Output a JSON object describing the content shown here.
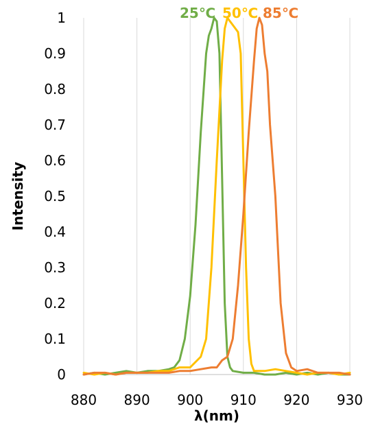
{
  "chart_data": {
    "type": "line",
    "title": "",
    "xlabel": "λ(nm)",
    "ylabel": "Intensity",
    "xlim": [
      880,
      930
    ],
    "ylim": [
      0,
      1
    ],
    "x_ticks": [
      880,
      890,
      900,
      910,
      920,
      930
    ],
    "y_ticks": [
      0,
      0.1,
      0.2,
      0.3,
      0.4,
      0.5,
      0.6,
      0.7,
      0.8,
      0.9,
      1
    ],
    "x_tick_labels": [
      "880",
      "890",
      "900",
      "910",
      "920",
      "930"
    ],
    "y_tick_labels": [
      "0",
      "0.1",
      "0.2",
      "0.3",
      "0.4",
      "0.5",
      "0.6",
      "0.7",
      "0.8",
      "0.9",
      "1"
    ],
    "grid": "vertical",
    "legend_position": "top-center",
    "series": [
      {
        "name": "25℃",
        "color": "#70AD47",
        "points": [
          [
            880,
            0.0
          ],
          [
            882,
            0.005
          ],
          [
            884,
            0.0
          ],
          [
            886,
            0.005
          ],
          [
            888,
            0.01
          ],
          [
            890,
            0.005
          ],
          [
            892,
            0.01
          ],
          [
            894,
            0.01
          ],
          [
            896,
            0.015
          ],
          [
            897,
            0.02
          ],
          [
            898,
            0.04
          ],
          [
            899,
            0.1
          ],
          [
            900,
            0.22
          ],
          [
            901,
            0.42
          ],
          [
            902,
            0.68
          ],
          [
            903,
            0.9
          ],
          [
            903.5,
            0.95
          ],
          [
            904,
            0.97
          ],
          [
            904.5,
            1.0
          ],
          [
            905,
            0.99
          ],
          [
            905.5,
            0.9
          ],
          [
            906,
            0.55
          ],
          [
            906.5,
            0.2
          ],
          [
            907,
            0.05
          ],
          [
            907.5,
            0.02
          ],
          [
            908,
            0.01
          ],
          [
            910,
            0.005
          ],
          [
            912,
            0.005
          ],
          [
            914,
            0.0
          ],
          [
            916,
            0.0
          ],
          [
            918,
            0.005
          ],
          [
            920,
            0.0
          ],
          [
            922,
            0.005
          ],
          [
            924,
            0.0
          ],
          [
            926,
            0.005
          ],
          [
            928,
            0.0
          ],
          [
            930,
            0.0
          ]
        ]
      },
      {
        "name": "50℃",
        "color": "#FFC000",
        "points": [
          [
            880,
            0.005
          ],
          [
            882,
            0.0
          ],
          [
            884,
            0.005
          ],
          [
            886,
            0.0
          ],
          [
            888,
            0.005
          ],
          [
            890,
            0.005
          ],
          [
            892,
            0.005
          ],
          [
            894,
            0.01
          ],
          [
            896,
            0.01
          ],
          [
            898,
            0.02
          ],
          [
            900,
            0.02
          ],
          [
            902,
            0.05
          ],
          [
            903,
            0.1
          ],
          [
            904,
            0.3
          ],
          [
            905,
            0.6
          ],
          [
            906,
            0.88
          ],
          [
            906.5,
            0.97
          ],
          [
            907,
            1.0
          ],
          [
            908,
            0.98
          ],
          [
            908.5,
            0.97
          ],
          [
            909,
            0.96
          ],
          [
            909.5,
            0.9
          ],
          [
            910,
            0.6
          ],
          [
            910.5,
            0.3
          ],
          [
            911,
            0.1
          ],
          [
            911.5,
            0.03
          ],
          [
            912,
            0.01
          ],
          [
            914,
            0.01
          ],
          [
            916,
            0.015
          ],
          [
            918,
            0.01
          ],
          [
            920,
            0.005
          ],
          [
            922,
            0.0
          ],
          [
            924,
            0.005
          ],
          [
            926,
            0.005
          ],
          [
            928,
            0.0
          ],
          [
            930,
            0.005
          ]
        ]
      },
      {
        "name": "85℃",
        "color": "#ED7D31",
        "points": [
          [
            880,
            0.0
          ],
          [
            882,
            0.005
          ],
          [
            884,
            0.005
          ],
          [
            886,
            0.0
          ],
          [
            888,
            0.005
          ],
          [
            890,
            0.005
          ],
          [
            892,
            0.005
          ],
          [
            894,
            0.005
          ],
          [
            896,
            0.005
          ],
          [
            898,
            0.01
          ],
          [
            900,
            0.01
          ],
          [
            902,
            0.015
          ],
          [
            904,
            0.02
          ],
          [
            905,
            0.02
          ],
          [
            906,
            0.04
          ],
          [
            907,
            0.05
          ],
          [
            908,
            0.1
          ],
          [
            909,
            0.25
          ],
          [
            910,
            0.45
          ],
          [
            911,
            0.68
          ],
          [
            912,
            0.88
          ],
          [
            912.5,
            0.97
          ],
          [
            913,
            1.0
          ],
          [
            913.5,
            0.98
          ],
          [
            914,
            0.9
          ],
          [
            914.5,
            0.85
          ],
          [
            915,
            0.7
          ],
          [
            916,
            0.5
          ],
          [
            917,
            0.2
          ],
          [
            918,
            0.06
          ],
          [
            919,
            0.02
          ],
          [
            920,
            0.01
          ],
          [
            922,
            0.015
          ],
          [
            924,
            0.005
          ],
          [
            926,
            0.005
          ],
          [
            928,
            0.005
          ],
          [
            930,
            0.0
          ]
        ]
      }
    ]
  }
}
